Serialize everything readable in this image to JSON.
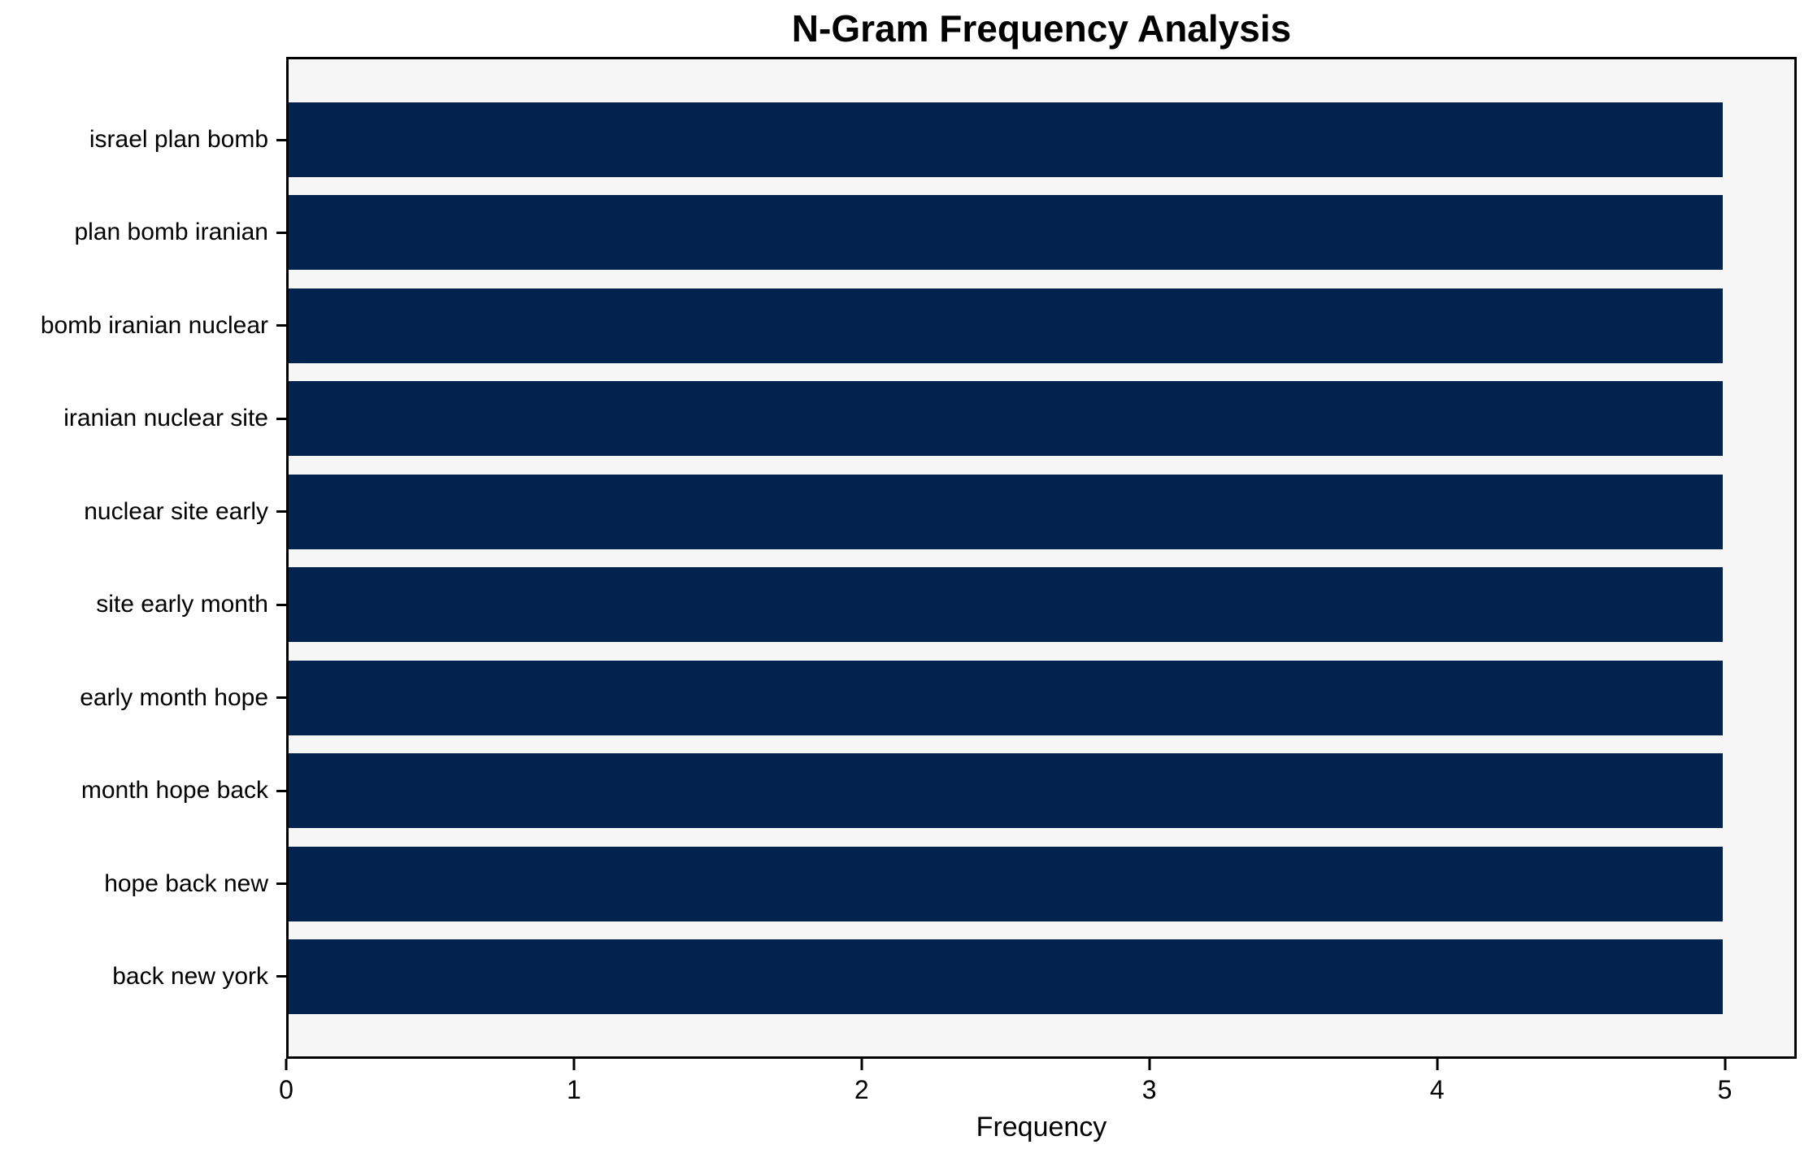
{
  "chart_data": {
    "type": "bar",
    "orientation": "horizontal",
    "title": "N-Gram Frequency Analysis",
    "xlabel": "Frequency",
    "ylabel": "",
    "categories": [
      "israel plan bomb",
      "plan bomb iranian",
      "bomb iranian nuclear",
      "iranian nuclear site",
      "nuclear site early",
      "site early month",
      "early month hope",
      "month hope back",
      "hope back new",
      "back new york"
    ],
    "values": [
      5,
      5,
      5,
      5,
      5,
      5,
      5,
      5,
      5,
      5
    ],
    "xticks": [
      0,
      1,
      2,
      3,
      4,
      5
    ],
    "xlim": [
      0,
      5.25
    ],
    "grid": false,
    "legend": null,
    "colors": {
      "bar": "#02234d",
      "plot_background": "#f6f6f7",
      "figure_background": "#ffffff",
      "axis": "#000000",
      "text": "#000000"
    }
  }
}
